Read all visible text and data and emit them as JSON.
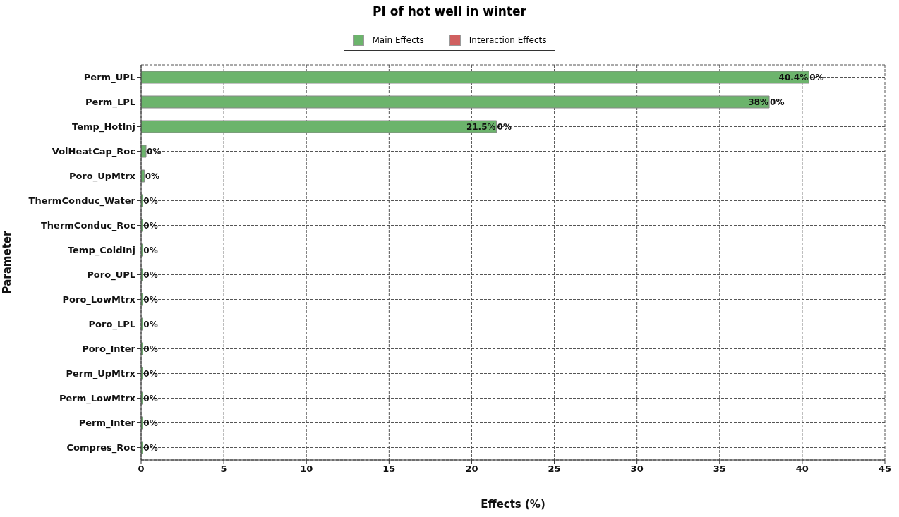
{
  "chart_data": {
    "type": "bar",
    "orientation": "horizontal",
    "stacked": true,
    "title": "PI of hot well in winter",
    "xlabel": "Effects (%)",
    "ylabel": "Parameter",
    "categories": [
      "Perm_UPL",
      "Perm_LPL",
      "Temp_HotInj",
      "VolHeatCap_Roc",
      "Poro_UpMtrx",
      "ThermConduc_Water",
      "ThermConduc_Roc",
      "Temp_ColdInj",
      "Poro_UPL",
      "Poro_LowMtrx",
      "Poro_LPL",
      "Poro_Inter",
      "Perm_UpMtrx",
      "Perm_LowMtrx",
      "Perm_Inter",
      "Compres_Roc"
    ],
    "series": [
      {
        "name": "Main Effects",
        "color": "#6cb46c",
        "values": [
          40.4,
          38,
          21.5,
          0.3,
          0.2,
          0.1,
          0.1,
          0.1,
          0.1,
          0.1,
          0.1,
          0.1,
          0.1,
          0.1,
          0.1,
          0.1
        ],
        "value_labels": [
          "40.4%",
          "38%",
          "21.5%",
          null,
          null,
          null,
          null,
          null,
          null,
          null,
          null,
          null,
          null,
          null,
          null,
          null
        ]
      },
      {
        "name": "Interaction Effects",
        "color": "#d06060",
        "values": [
          0,
          0,
          0,
          0,
          0,
          0,
          0,
          0,
          0,
          0,
          0,
          0,
          0,
          0,
          0,
          0
        ],
        "value_labels": [
          "0%",
          "0%",
          "0%",
          "0%",
          "0%",
          "0%",
          "0%",
          "0%",
          "0%",
          "0%",
          "0%",
          "0%",
          "0%",
          "0%",
          "0%",
          "0%"
        ]
      }
    ],
    "xlim": [
      0,
      45
    ],
    "xticks": [
      0,
      5,
      10,
      15,
      20,
      25,
      30,
      35,
      40,
      45
    ],
    "grid": true,
    "legend": "top"
  }
}
